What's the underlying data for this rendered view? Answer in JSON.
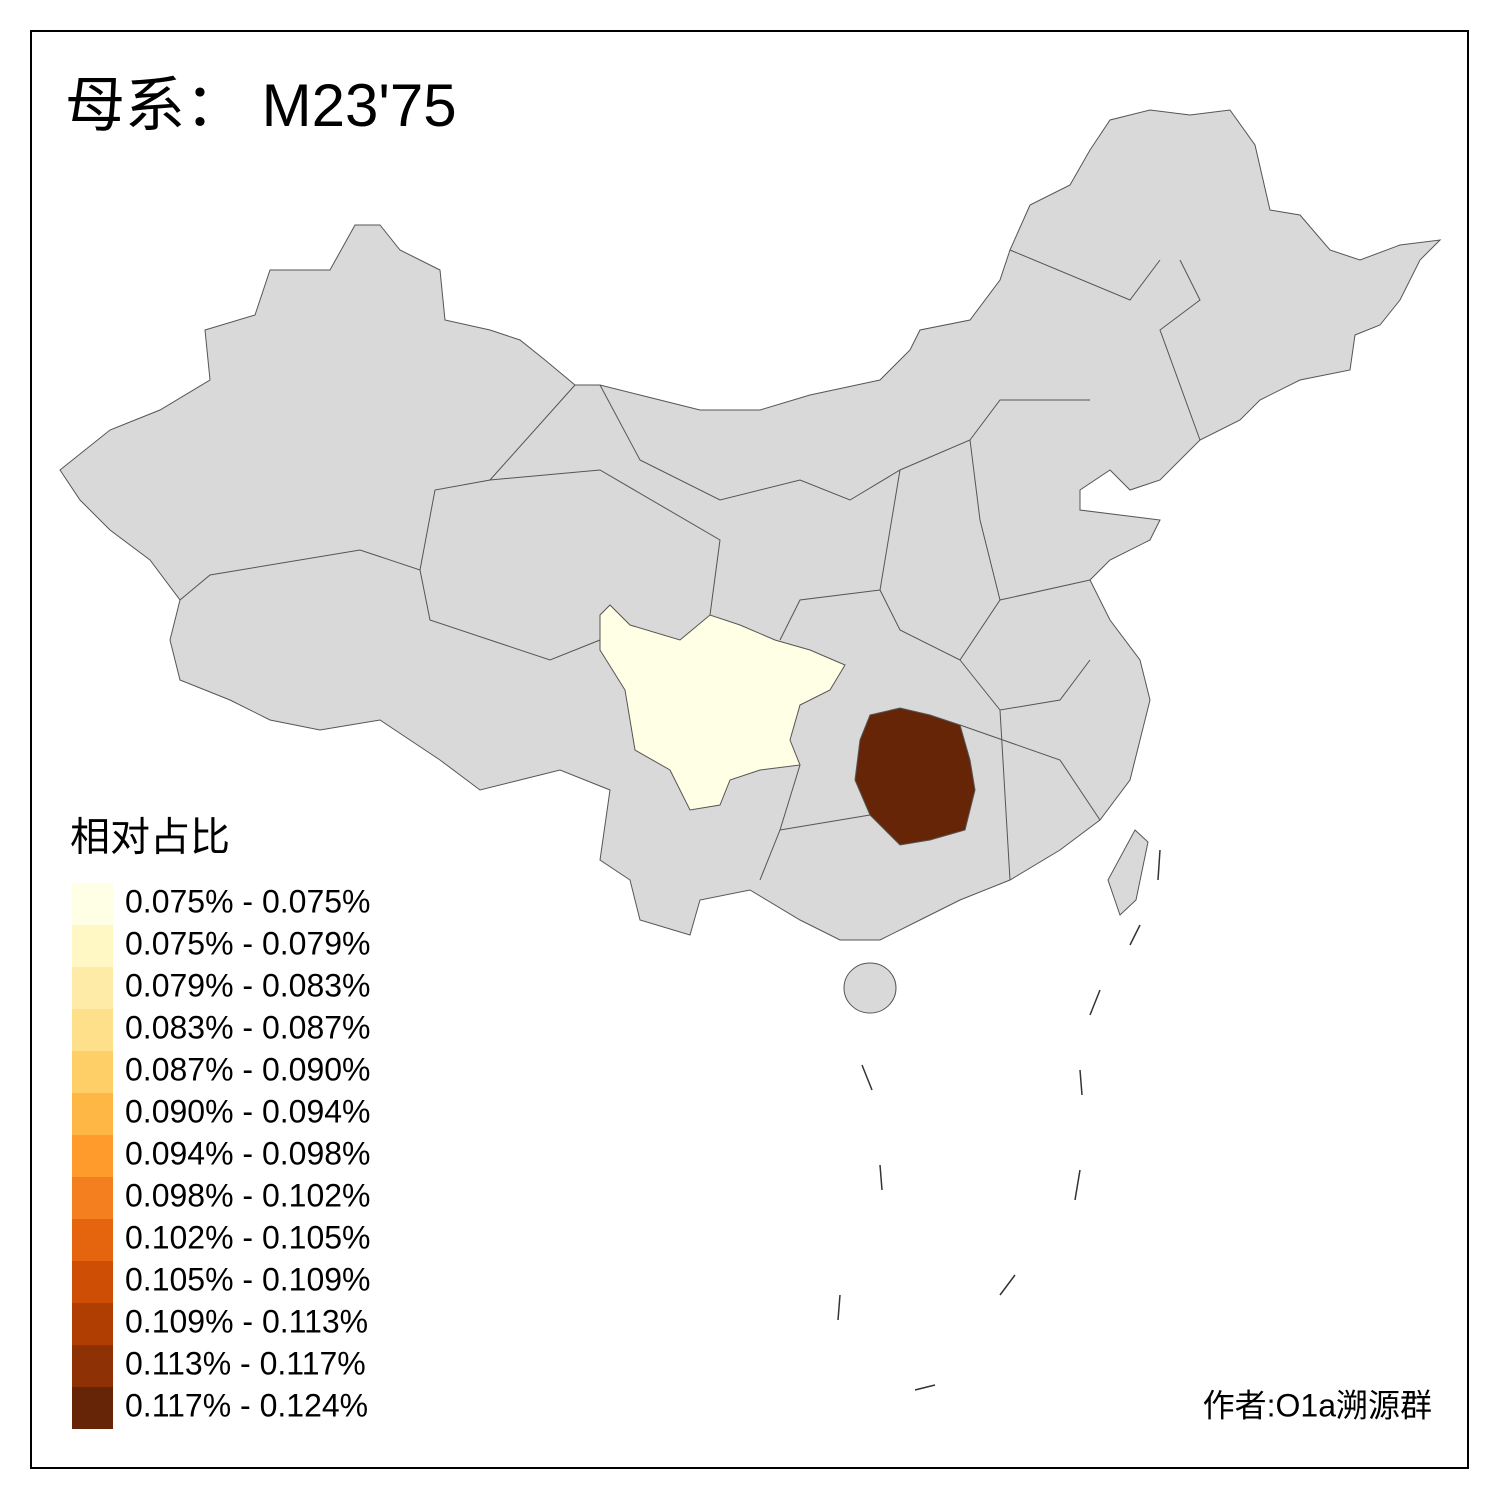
{
  "title": "母系： M23'75",
  "legend": {
    "title": "相对占比",
    "items": [
      {
        "label": "0.075% - 0.075%",
        "color": "#FFFFE5"
      },
      {
        "label": "0.075% - 0.079%",
        "color": "#FFF8C4"
      },
      {
        "label": "0.079% - 0.083%",
        "color": "#FEEBA8"
      },
      {
        "label": "0.083% - 0.087%",
        "color": "#FEE08B"
      },
      {
        "label": "0.087% - 0.090%",
        "color": "#FECF66"
      },
      {
        "label": "0.090% - 0.094%",
        "color": "#FEB644"
      },
      {
        "label": "0.094% - 0.098%",
        "color": "#FE9B2C"
      },
      {
        "label": "0.098% - 0.102%",
        "color": "#F47F1F"
      },
      {
        "label": "0.102% - 0.105%",
        "color": "#E5650F"
      },
      {
        "label": "0.105% - 0.109%",
        "color": "#CE4E06"
      },
      {
        "label": "0.109% - 0.113%",
        "color": "#B03E03"
      },
      {
        "label": "0.113% - 0.117%",
        "color": "#8E3104"
      },
      {
        "label": "0.117% - 0.124%",
        "color": "#662506"
      }
    ]
  },
  "credit": "作者:O1a溯源群"
}
